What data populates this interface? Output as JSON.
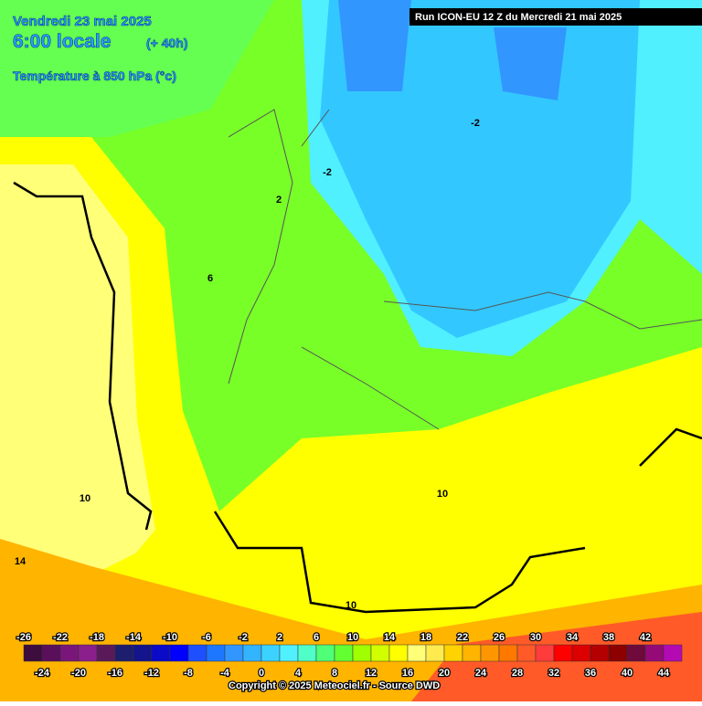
{
  "header": {
    "date": "Vendredi 23 mai 2025",
    "time": "6:00 locale",
    "lead": "(+ 40h)",
    "field": "Température à 850 hPa (°c)",
    "run": "Run ICON-EU 12 Z du Mercredi 21 mai 2025"
  },
  "map": {
    "contour_labels": [
      "-2",
      "-2",
      "2",
      "6",
      "10",
      "10",
      "10",
      "14"
    ]
  },
  "scale": {
    "colors": [
      "#3d0d3d",
      "#5a0f5a",
      "#7a167a",
      "#8b1f8b",
      "#5a1a5a",
      "#1e1e6e",
      "#14148c",
      "#0a0ac8",
      "#0000ff",
      "#1e50ff",
      "#1e78ff",
      "#3296ff",
      "#32b4ff",
      "#3cd2ff",
      "#50f0ff",
      "#50ffc8",
      "#50ff78",
      "#64ff32",
      "#a0ff00",
      "#d2ff00",
      "#ffff00",
      "#ffff78",
      "#ffeb50",
      "#ffd200",
      "#ffb400",
      "#ff9600",
      "#ff7800",
      "#ff5a28",
      "#ff3c3c",
      "#ff0000",
      "#dc0000",
      "#b40000",
      "#8c0000",
      "#6e0a3c",
      "#960a78",
      "#b40ab4"
    ],
    "top_labels": [
      -26,
      -22,
      -18,
      -14,
      -10,
      -6,
      -2,
      2,
      6,
      10,
      14,
      18,
      22,
      26,
      30,
      34,
      38,
      42
    ],
    "bottom_labels": [
      -24,
      -20,
      -16,
      -12,
      -8,
      -4,
      0,
      4,
      8,
      12,
      16,
      20,
      24,
      28,
      32,
      36,
      40,
      44
    ]
  },
  "footer": {
    "copyright": "Copyright © 2025 Meteociel.fr - Source DWD"
  }
}
